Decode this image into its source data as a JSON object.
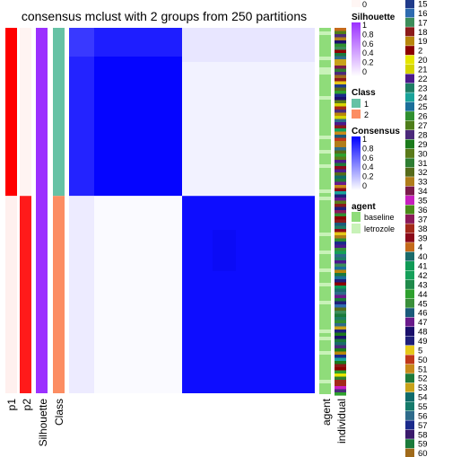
{
  "chart_data": {
    "type": "heatmap",
    "title": "consensus mclust with 2 groups from 250 partitions",
    "column_labels": [
      "p1",
      "p2",
      "Silhouette",
      "Class",
      "agent",
      "individual"
    ],
    "groups": [
      {
        "name": "1",
        "fraction": 0.46
      },
      {
        "name": "2",
        "fraction": 0.54
      }
    ],
    "consensus_blocks": [
      {
        "rows": "class 1",
        "cols": "class 1",
        "mean_consensus": 0.98
      },
      {
        "rows": "class 1",
        "cols": "class 2",
        "mean_consensus": 0.05
      },
      {
        "rows": "class 2",
        "cols": "class 1",
        "mean_consensus": 0.02
      },
      {
        "rows": "class 2",
        "cols": "class 2",
        "mean_consensus": 0.95
      }
    ],
    "legends": {
      "silhouette": {
        "title": "Silhouette",
        "ticks": [
          "1",
          "0.8",
          "0.6",
          "0.4",
          "0.2",
          "0"
        ],
        "colors": [
          "#9B30FF",
          "#ffffff"
        ]
      },
      "class": {
        "title": "Class",
        "entries": [
          {
            "label": "1",
            "color": "#66C2A5"
          },
          {
            "label": "2",
            "color": "#FC8D62"
          }
        ]
      },
      "consensus": {
        "title": "Consensus",
        "ticks": [
          "1",
          "0.8",
          "0.6",
          "0.4",
          "0.2",
          "0"
        ],
        "colors": [
          "#0000FF",
          "#ffffff"
        ]
      },
      "agent": {
        "title": "agent",
        "entries": [
          {
            "label": "baseline",
            "color": "#8FDC7A"
          },
          {
            "label": "letrozole",
            "color": "#C8F2B8"
          }
        ]
      },
      "individual": {
        "entries": [
          "15",
          "16",
          "17",
          "18",
          "19",
          "2",
          "20",
          "21",
          "22",
          "23",
          "24",
          "25",
          "26",
          "27",
          "28",
          "29",
          "30",
          "31",
          "32",
          "33",
          "34",
          "35",
          "36",
          "37",
          "38",
          "39",
          "4",
          "40",
          "41",
          "42",
          "43",
          "44",
          "45",
          "46",
          "47",
          "48",
          "49",
          "5",
          "50",
          "51",
          "52",
          "53",
          "54",
          "55",
          "56",
          "57",
          "58",
          "59",
          "60"
        ],
        "colors": [
          "#1F3A8A",
          "#2E6BB0",
          "#3C8D5A",
          "#8B1A1A",
          "#B8860B",
          "#8B0000",
          "#E5E500",
          "#D4D400",
          "#4B1A8C",
          "#1E7D64",
          "#1AA39A",
          "#1B6E9A",
          "#2F8F2F",
          "#4E7D1A",
          "#4B2A7A",
          "#1B7A1B",
          "#5A7A1A",
          "#2E7D32",
          "#556B1A",
          "#B07D1A",
          "#7A1A4B",
          "#C71FBE",
          "#4B8B1A",
          "#8B1A5A",
          "#A32A1A",
          "#8B0A1A",
          "#C46A1A",
          "#1A6B6B",
          "#0F9A55",
          "#15A05A",
          "#1F8A4A",
          "#2EA02E",
          "#3A8F3A",
          "#1A5A7A",
          "#6A1A8B",
          "#1A0F6B",
          "#1F1F7A",
          "#E5C81A",
          "#C0381A",
          "#C88A1A",
          "#1F7A3A",
          "#C8A21A",
          "#0F6B6B",
          "#157A6B",
          "#2E6B8B",
          "#1A2A8B",
          "#3A1A6B",
          "#1A7A3A",
          "#A06A1A"
        ]
      }
    }
  }
}
